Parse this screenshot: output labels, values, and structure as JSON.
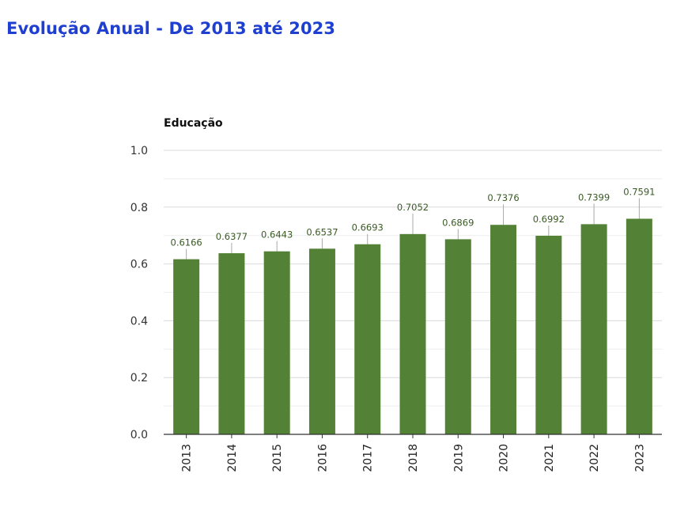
{
  "page": {
    "title": "Evolução Anual - De 2013 até 2023"
  },
  "colors": {
    "title": "#1f3fd0",
    "bar": "#538135",
    "leader": "#a9a9a9",
    "grid_major": "#d9d9d9",
    "grid_minor": "#eeeeee",
    "axis": "#333333"
  },
  "chart_data": {
    "type": "bar",
    "title": "",
    "xlabel": "",
    "ylabel": "Educação",
    "categories": [
      "2013",
      "2014",
      "2015",
      "2016",
      "2017",
      "2018",
      "2019",
      "2020",
      "2021",
      "2022",
      "2023"
    ],
    "values": [
      0.6166,
      0.6377,
      0.6443,
      0.6537,
      0.6693,
      0.7052,
      0.6869,
      0.7376,
      0.6992,
      0.7399,
      0.7591
    ],
    "data_labels": [
      "0.6166",
      "0.6377",
      "0.6443",
      "0.6537",
      "0.6693",
      "0.7052",
      "0.6869",
      "0.7376",
      "0.6992",
      "0.7399",
      "0.7591"
    ],
    "ylim": [
      0,
      1.0
    ],
    "yticks": [
      0.0,
      0.2,
      0.4,
      0.6,
      0.8,
      1.0
    ],
    "ytick_labels": [
      "0.0",
      "0.2",
      "0.4",
      "0.6",
      "0.8",
      "1.0"
    ],
    "grid": true,
    "legend": "none"
  }
}
